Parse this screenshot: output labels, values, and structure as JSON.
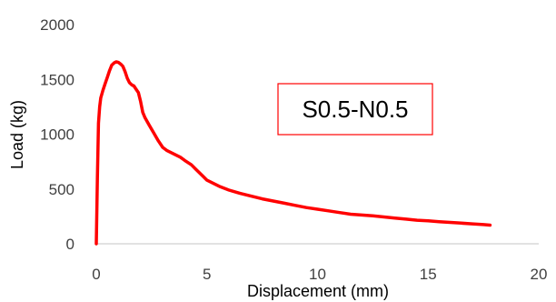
{
  "chart_data": {
    "type": "line",
    "title": "",
    "xlabel": "Displacement (mm)",
    "ylabel": "Load (kg)",
    "xlim": [
      0,
      20
    ],
    "ylim": [
      0,
      2000
    ],
    "x_ticks": [
      0,
      5,
      10,
      15,
      20
    ],
    "y_ticks": [
      0,
      500,
      1000,
      1500,
      2000
    ],
    "x_tick_labels": [
      "0",
      "5",
      "10",
      "15",
      "20"
    ],
    "y_tick_labels": [
      "0",
      "500",
      "1000",
      "1500",
      "2000"
    ],
    "grid": false,
    "annotation": "S0.5-N0.5",
    "colors": {
      "series": "#ff0000",
      "annotation_border": "#ff0000",
      "axis": "#d9d9d9"
    },
    "series": [
      {
        "x": [
          0,
          0.05,
          0.1,
          0.15,
          0.2,
          0.3,
          0.4,
          0.5,
          0.6,
          0.7,
          0.8,
          0.9,
          1.0,
          1.1,
          1.2,
          1.3,
          1.4,
          1.5,
          1.6,
          1.7,
          1.8,
          1.9,
          2.0,
          2.1,
          2.2,
          2.4,
          2.6,
          2.8,
          3.0,
          3.2,
          3.5,
          3.8,
          4.0,
          4.3,
          4.5,
          4.8,
          5.0,
          5.3,
          5.6,
          6.0,
          6.5,
          7.0,
          7.5,
          8.0,
          8.5,
          9.0,
          9.5,
          10.0,
          10.5,
          11.0,
          11.5,
          12.0,
          12.5,
          13.0,
          13.5,
          14.0,
          14.5,
          15.0,
          15.5,
          16.0,
          16.5,
          17.0,
          17.5,
          17.8
        ],
        "y": [
          0,
          600,
          1100,
          1250,
          1330,
          1400,
          1460,
          1520,
          1580,
          1630,
          1650,
          1660,
          1655,
          1640,
          1620,
          1570,
          1510,
          1470,
          1450,
          1440,
          1410,
          1380,
          1300,
          1200,
          1150,
          1080,
          1010,
          940,
          880,
          850,
          820,
          790,
          760,
          720,
          680,
          620,
          580,
          550,
          520,
          490,
          460,
          435,
          410,
          390,
          370,
          350,
          330,
          315,
          300,
          285,
          270,
          262,
          255,
          245,
          235,
          225,
          215,
          210,
          202,
          195,
          188,
          182,
          175,
          170
        ]
      }
    ]
  }
}
